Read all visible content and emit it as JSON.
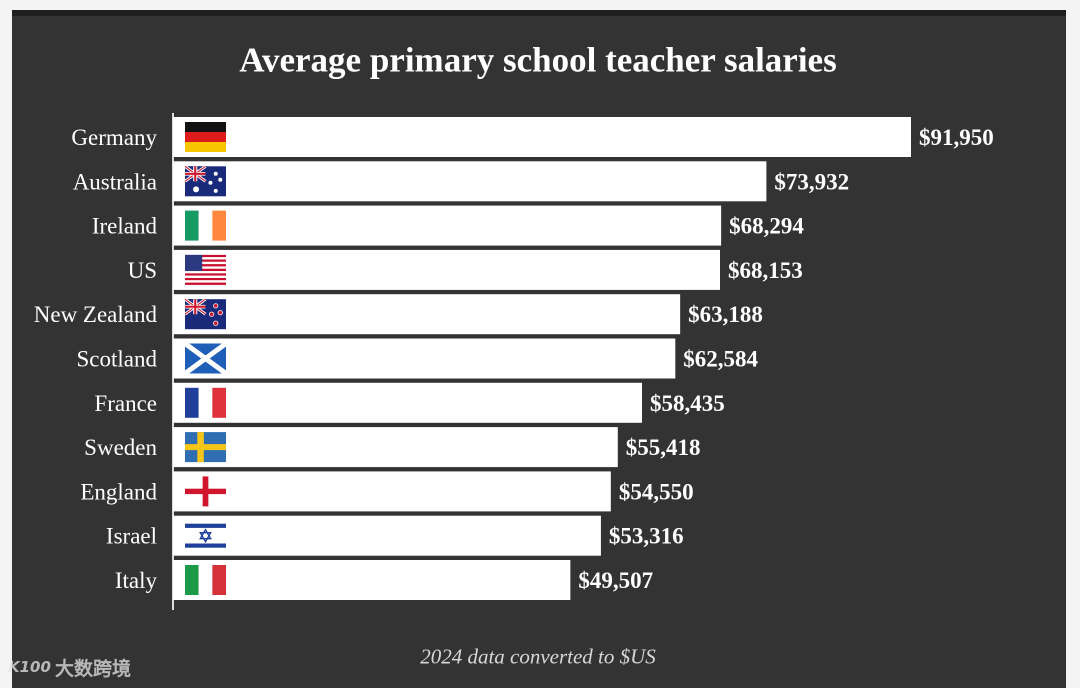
{
  "chart_data": {
    "type": "bar",
    "orientation": "horizontal",
    "title": "Average primary school teacher salaries",
    "note": "2024 data converted to $US",
    "categories": [
      "Germany",
      "Australia",
      "Ireland",
      "US",
      "New Zealand",
      "Scotland",
      "France",
      "Sweden",
      "England",
      "Israel",
      "Italy"
    ],
    "values": [
      91950,
      73932,
      68294,
      68153,
      63188,
      62584,
      58435,
      55418,
      54550,
      53316,
      49507
    ],
    "value_labels": [
      "$91,950",
      "$73,932",
      "$68,294",
      "$68,153",
      "$63,188",
      "$62,584",
      "$58,435",
      "$55,418",
      "$54,550",
      "$53,316",
      "$49,507"
    ],
    "flags": [
      "germany-flag",
      "australia-flag",
      "ireland-flag",
      "us-flag",
      "new-zealand-flag",
      "scotland-flag",
      "france-flag",
      "sweden-flag",
      "england-flag",
      "israel-flag",
      "italy-flag"
    ],
    "xlim": [
      0,
      91950
    ],
    "grid": false,
    "legend": "none",
    "colors": {
      "background": "#333333",
      "bar": "#ffffff",
      "text": "#ffffff"
    }
  },
  "watermark": {
    "text": "大数跨境",
    "logo": "K100"
  }
}
